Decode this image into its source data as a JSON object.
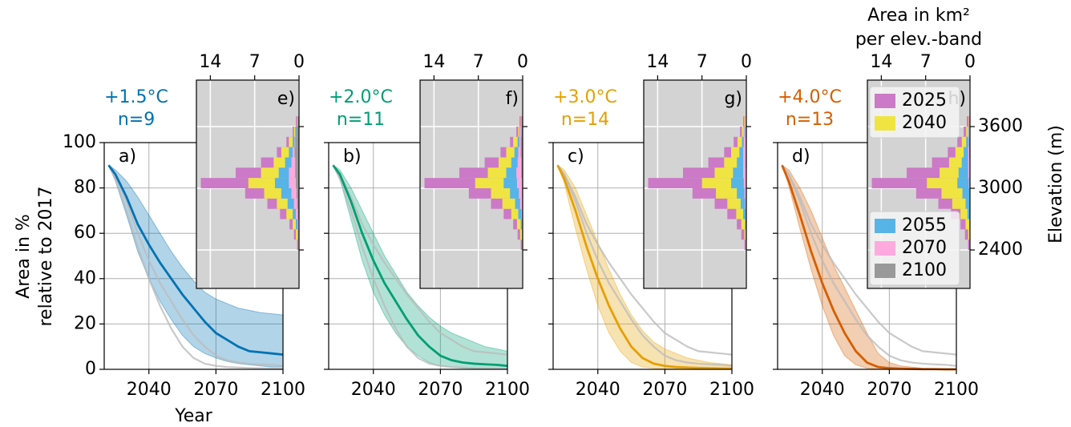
{
  "chart_data": [
    {
      "type": "line",
      "title": "+1.5°C",
      "subtitle": "n=9",
      "panel_label": "a)",
      "xlabel": "Year",
      "ylabel": [
        "Area in %",
        "relative to 2017"
      ],
      "x": [
        2022,
        2025,
        2030,
        2035,
        2040,
        2045,
        2050,
        2055,
        2060,
        2065,
        2070,
        2075,
        2080,
        2085,
        2090,
        2095,
        2100
      ],
      "xlim": [
        2020,
        2100
      ],
      "xticks": [
        2040,
        2070,
        2100
      ],
      "ylim": [
        0,
        100
      ],
      "yticks": [
        0,
        20,
        40,
        60,
        80,
        100
      ],
      "grid": true,
      "series": [
        {
          "color": "#0072b2",
          "values": [
            90,
            86,
            76,
            64,
            55,
            47,
            40,
            33,
            27,
            21,
            16,
            13,
            10,
            8,
            7.5,
            7,
            6.5
          ],
          "lower": [
            90,
            83,
            68,
            52,
            40,
            30,
            22,
            15,
            10,
            7,
            5,
            3.5,
            2.5,
            2,
            1.5,
            1,
            1
          ],
          "upper": [
            90,
            88,
            83,
            76,
            68,
            60,
            52,
            45,
            39,
            34,
            31,
            29,
            27,
            26,
            25,
            24.5,
            24
          ]
        },
        {
          "color": "#bbbbbb",
          "values": [
            90,
            86,
            74,
            60,
            48,
            38,
            30,
            22,
            15,
            10,
            6,
            4,
            3,
            2.5,
            2.2,
            2,
            1.5
          ]
        },
        {
          "color": "#bbbbbb",
          "values": [
            90,
            84,
            70,
            54,
            40,
            28,
            18,
            10,
            5,
            2.5,
            1.5,
            1,
            0.8,
            0.6,
            0.5,
            0.4,
            0.3
          ]
        }
      ],
      "inset": {
        "type": "histogram",
        "panel_label": "e)",
        "bins": [
          2400,
          2500,
          2600,
          2700,
          2800,
          2900,
          3000,
          3100,
          3200,
          3300,
          3400,
          3500,
          3600,
          3700
        ],
        "xlim": [
          16.2,
          0
        ],
        "xticks": [
          14,
          7,
          0
        ],
        "grid": true,
        "series": [
          {
            "color": "#cc79c7",
            "values": [
              0.3,
              0.8,
              1.5,
              3,
              5,
              8.5,
              15.5,
              10,
              6,
              3.5,
              2,
              1,
              0.5
            ]
          },
          {
            "color": "#f0e442",
            "values": [
              0.1,
              0.5,
              1,
              2,
              3.5,
              5.5,
              8,
              6,
              4,
              2.8,
              1.6,
              0.8,
              0.3
            ]
          },
          {
            "color": "#56b4e9",
            "values": [
              0,
              0.2,
              0.5,
              1,
              1.8,
              2.8,
              3.8,
              3.2,
              2.2,
              1.6,
              1,
              0.6,
              0.2
            ]
          },
          {
            "color": "#ffaadf",
            "values": [
              0,
              0.1,
              0.2,
              0.5,
              0.8,
              1.2,
              1.6,
              1.6,
              1.2,
              1,
              0.7,
              0.4,
              0.1
            ]
          },
          {
            "color": "#999999",
            "values": [
              0,
              0,
              0,
              0.2,
              0.3,
              0.4,
              0.5,
              0.6,
              0.6,
              0.7,
              0.6,
              0.4,
              0.2
            ]
          }
        ]
      }
    },
    {
      "type": "line",
      "title": "+2.0°C",
      "subtitle": "n=11",
      "panel_label": "b)",
      "x": [
        2022,
        2025,
        2030,
        2035,
        2040,
        2045,
        2050,
        2055,
        2060,
        2065,
        2070,
        2075,
        2080,
        2085,
        2090,
        2095,
        2100
      ],
      "xlim": [
        2020,
        2100
      ],
      "xticks": [
        2040,
        2070,
        2100
      ],
      "grid": true,
      "series": [
        {
          "color": "#009e73",
          "values": [
            90,
            86,
            74,
            60,
            48,
            38,
            30,
            22,
            15,
            10,
            6,
            4,
            3,
            2.5,
            2.2,
            2,
            1.5
          ],
          "lower": [
            90,
            84,
            66,
            48,
            34,
            24,
            16,
            10,
            6,
            3,
            1.5,
            1,
            0.5,
            0.3,
            0.2,
            0.1,
            0
          ],
          "upper": [
            90,
            88,
            80,
            70,
            60,
            50,
            42,
            34,
            28,
            23,
            19,
            16,
            14,
            12,
            10,
            9,
            8
          ]
        },
        {
          "color": "#bbbbbb",
          "values": [
            90,
            86,
            76,
            64,
            55,
            47,
            40,
            33,
            27,
            21,
            16,
            13,
            10,
            8,
            7.5,
            7,
            6.5
          ]
        },
        {
          "color": "#bbbbbb",
          "values": [
            90,
            84,
            70,
            54,
            40,
            28,
            18,
            10,
            5,
            2.5,
            1.5,
            1,
            0.8,
            0.6,
            0.5,
            0.4,
            0.3
          ]
        }
      ],
      "inset": {
        "type": "histogram",
        "panel_label": "f)",
        "bins": [
          2400,
          2500,
          2600,
          2700,
          2800,
          2900,
          3000,
          3100,
          3200,
          3300,
          3400,
          3500,
          3600,
          3700
        ],
        "xlim": [
          16.2,
          0
        ],
        "xticks": [
          14,
          7,
          0
        ],
        "grid": true,
        "series": [
          {
            "color": "#cc79c7",
            "values": [
              0.3,
              0.8,
              1.5,
              3,
              5,
              8.5,
              15.5,
              10,
              6,
              3.5,
              2,
              1,
              0.5
            ]
          },
          {
            "color": "#f0e442",
            "values": [
              0.1,
              0.4,
              0.9,
              1.8,
              3.2,
              5,
              7.5,
              5.5,
              3.8,
              2.6,
              1.5,
              0.7,
              0.3
            ]
          },
          {
            "color": "#56b4e9",
            "values": [
              0,
              0.1,
              0.3,
              0.7,
              1.2,
              2,
              3,
              2.6,
              1.8,
              1.3,
              0.8,
              0.5,
              0.2
            ]
          },
          {
            "color": "#ffaadf",
            "values": [
              0,
              0,
              0.1,
              0.2,
              0.4,
              0.6,
              0.9,
              1,
              0.8,
              0.7,
              0.5,
              0.4,
              0.1
            ]
          },
          {
            "color": "#999999",
            "values": [
              0,
              0,
              0,
              0,
              0,
              0.1,
              0.1,
              0.2,
              0.2,
              0.3,
              0.3,
              0.2,
              0.1
            ]
          }
        ]
      }
    },
    {
      "type": "line",
      "title": "+3.0°C",
      "subtitle": "n=14",
      "panel_label": "c)",
      "x": [
        2022,
        2025,
        2030,
        2035,
        2040,
        2045,
        2050,
        2055,
        2060,
        2065,
        2070,
        2075,
        2080,
        2085,
        2090,
        2095,
        2100
      ],
      "xlim": [
        2020,
        2100
      ],
      "xticks": [
        2040,
        2070,
        2100
      ],
      "grid": true,
      "series": [
        {
          "color": "#e69f00",
          "values": [
            90,
            84,
            70,
            54,
            40,
            28,
            18,
            10,
            5,
            2.5,
            1.5,
            1,
            0.8,
            0.6,
            0.5,
            0.4,
            0.3
          ],
          "lower": [
            90,
            82,
            62,
            44,
            28,
            16,
            8,
            3,
            1,
            0.5,
            0.2,
            0.1,
            0,
            0,
            0,
            0,
            0
          ],
          "upper": [
            90,
            88,
            80,
            68,
            56,
            44,
            33,
            24,
            17,
            12,
            9,
            7,
            5,
            4,
            3,
            2.5,
            2
          ]
        },
        {
          "color": "#bbbbbb",
          "values": [
            90,
            86,
            76,
            64,
            55,
            47,
            40,
            33,
            27,
            21,
            16,
            13,
            10,
            8,
            7.5,
            7,
            6.5
          ]
        },
        {
          "color": "#bbbbbb",
          "values": [
            90,
            86,
            74,
            60,
            48,
            38,
            30,
            22,
            15,
            10,
            6,
            4,
            3,
            2.5,
            2.2,
            2,
            1.5
          ]
        }
      ],
      "inset": {
        "type": "histogram",
        "panel_label": "g)",
        "bins": [
          2400,
          2500,
          2600,
          2700,
          2800,
          2900,
          3000,
          3100,
          3200,
          3300,
          3400,
          3500,
          3600,
          3700
        ],
        "xlim": [
          16.2,
          0
        ],
        "xticks": [
          14,
          7,
          0
        ],
        "grid": true,
        "series": [
          {
            "color": "#cc79c7",
            "values": [
              0.3,
              0.8,
              1.5,
              3,
              5,
              8.5,
              15.5,
              10,
              6,
              3.5,
              2,
              1,
              0.5
            ]
          },
          {
            "color": "#f0e442",
            "values": [
              0.1,
              0.3,
              0.8,
              1.6,
              3,
              4.8,
              7,
              5,
              3.5,
              2.4,
              1.4,
              0.7,
              0.3
            ]
          },
          {
            "color": "#56b4e9",
            "values": [
              0,
              0.1,
              0.2,
              0.5,
              0.9,
              1.5,
              2.4,
              2.1,
              1.5,
              1.1,
              0.7,
              0.4,
              0.1
            ]
          },
          {
            "color": "#ffaadf",
            "values": [
              0,
              0,
              0,
              0.1,
              0.2,
              0.3,
              0.4,
              0.5,
              0.5,
              0.5,
              0.4,
              0.3,
              0.1
            ]
          },
          {
            "color": "#999999",
            "values": [
              0,
              0,
              0,
              0,
              0,
              0,
              0,
              0,
              0.1,
              0.1,
              0.1,
              0.1,
              0
            ]
          }
        ]
      }
    },
    {
      "type": "line",
      "title": "+4.0°C",
      "subtitle": "n=13",
      "panel_label": "d)",
      "x": [
        2022,
        2025,
        2030,
        2035,
        2040,
        2045,
        2050,
        2055,
        2060,
        2065,
        2070,
        2075,
        2080,
        2085,
        2090,
        2095,
        2100
      ],
      "xlim": [
        2020,
        2100
      ],
      "xticks": [
        2040,
        2070,
        2100
      ],
      "grid": true,
      "series": [
        {
          "color": "#d55e00",
          "values": [
            90,
            83,
            68,
            52,
            38,
            26,
            16,
            8,
            3,
            1,
            0.5,
            0.3,
            0.2,
            0.1,
            0.1,
            0,
            0
          ],
          "lower": [
            90,
            81,
            62,
            44,
            28,
            15,
            6,
            2,
            0.5,
            0.1,
            0,
            0,
            0,
            0,
            0,
            0,
            0
          ],
          "upper": [
            90,
            88,
            80,
            70,
            58,
            46,
            36,
            26,
            16,
            7,
            3,
            1.5,
            1,
            0.5,
            0.3,
            0.2,
            0.2
          ]
        },
        {
          "color": "#bbbbbb",
          "values": [
            90,
            86,
            76,
            64,
            55,
            47,
            40,
            33,
            27,
            21,
            16,
            13,
            10,
            8,
            7.5,
            7,
            6.5
          ]
        },
        {
          "color": "#bbbbbb",
          "values": [
            90,
            86,
            74,
            60,
            48,
            38,
            30,
            22,
            15,
            10,
            6,
            4,
            3,
            2.5,
            2.2,
            2,
            1.5
          ]
        }
      ],
      "inset": {
        "type": "histogram",
        "panel_label": "h)",
        "bins": [
          2400,
          2500,
          2600,
          2700,
          2800,
          2900,
          3000,
          3100,
          3200,
          3300,
          3400,
          3500,
          3600,
          3700
        ],
        "xlim": [
          16.2,
          0
        ],
        "xticks": [
          14,
          7,
          0
        ],
        "grid": true,
        "xlabel": [
          "Area in km²",
          "per elev.-band"
        ],
        "ylabel": "Elevation (m)",
        "ylim": [
          2026,
          4052
        ],
        "yticks": [
          2400,
          3000,
          3600
        ],
        "legend": "left",
        "series": [
          {
            "name": "2025",
            "color": "#cc79c7",
            "values": [
              0.3,
              0.8,
              1.5,
              3,
              5,
              8.5,
              15.5,
              10,
              6,
              3.5,
              2,
              1,
              0.5
            ]
          },
          {
            "name": "2040",
            "color": "#f0e442",
            "values": [
              0.1,
              0.3,
              0.7,
              1.5,
              2.8,
              4.5,
              6.8,
              4.8,
              3.3,
              2.3,
              1.3,
              0.6,
              0.2
            ]
          },
          {
            "name": "2055",
            "color": "#56b4e9",
            "values": [
              0,
              0,
              0.1,
              0.4,
              0.7,
              1.2,
              2,
              1.8,
              1.3,
              1,
              0.6,
              0.3,
              0.1
            ]
          },
          {
            "name": "2070",
            "color": "#ffaadf",
            "values": [
              0,
              0,
              0,
              0,
              0.1,
              0.1,
              0.2,
              0.3,
              0.3,
              0.3,
              0.2,
              0.2,
              0.1
            ]
          },
          {
            "name": "2100",
            "color": "#999999",
            "values": [
              0,
              0,
              0,
              0,
              0,
              0,
              0,
              0,
              0,
              0.1,
              0.1,
              0,
              0
            ]
          }
        ]
      }
    }
  ]
}
